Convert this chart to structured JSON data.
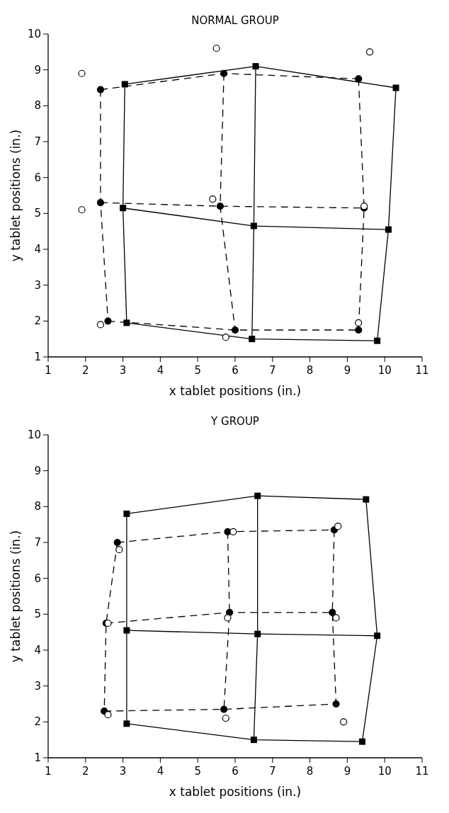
{
  "chart_data": [
    {
      "type": "line",
      "title": "NORMAL GROUP",
      "xlabel": "x tablet positions (in.)",
      "ylabel": "y tablet positions (in.)",
      "xlim": [
        1,
        11
      ],
      "ylim": [
        1,
        10
      ],
      "xticks": [
        1,
        2,
        3,
        4,
        5,
        6,
        7,
        8,
        9,
        10,
        11
      ],
      "yticks": [
        1,
        2,
        3,
        4,
        5,
        6,
        7,
        8,
        9,
        10
      ],
      "series": [
        {
          "color": "#000000",
          "marker": "square",
          "line_style": "solid",
          "x": [
            3.05,
            6.55,
            10.3
          ],
          "values": [
            8.6,
            9.1,
            8.5
          ]
        },
        {
          "color": "#000000",
          "marker": "square",
          "line_style": "solid",
          "x": [
            3.0,
            6.5,
            10.1
          ],
          "values": [
            5.15,
            4.65,
            4.55
          ]
        },
        {
          "color": "#000000",
          "marker": "square",
          "line_style": "solid",
          "x": [
            3.1,
            6.45,
            9.8
          ],
          "values": [
            1.95,
            1.5,
            1.45
          ]
        },
        {
          "color": "#000000",
          "marker": "none",
          "line_style": "solid",
          "x": [
            3.05,
            3.0,
            3.1
          ],
          "values": [
            8.6,
            5.15,
            1.95
          ]
        },
        {
          "color": "#000000",
          "marker": "none",
          "line_style": "solid",
          "x": [
            6.55,
            6.5,
            6.45
          ],
          "values": [
            9.1,
            4.65,
            1.5
          ]
        },
        {
          "color": "#000000",
          "marker": "none",
          "line_style": "solid",
          "x": [
            10.3,
            10.1,
            9.8
          ],
          "values": [
            8.5,
            4.55,
            1.45
          ]
        },
        {
          "color": "#000000",
          "marker": "circle",
          "line_style": "dashed",
          "x": [
            2.4,
            5.7,
            9.3
          ],
          "values": [
            8.45,
            8.9,
            8.75
          ]
        },
        {
          "color": "#000000",
          "marker": "circle",
          "line_style": "dashed",
          "x": [
            2.4,
            5.6,
            9.45
          ],
          "values": [
            5.3,
            5.2,
            5.15
          ]
        },
        {
          "color": "#000000",
          "marker": "circle",
          "line_style": "dashed",
          "x": [
            2.6,
            6.0,
            9.3
          ],
          "values": [
            2.0,
            1.75,
            1.75
          ]
        },
        {
          "color": "#000000",
          "marker": "none",
          "line_style": "dashed",
          "x": [
            2.4,
            2.4,
            2.6
          ],
          "values": [
            8.45,
            5.3,
            2.0
          ]
        },
        {
          "color": "#000000",
          "marker": "none",
          "line_style": "dashed",
          "x": [
            5.7,
            5.6,
            6.0
          ],
          "values": [
            8.9,
            5.2,
            1.75
          ]
        },
        {
          "color": "#000000",
          "marker": "none",
          "line_style": "dashed",
          "x": [
            9.3,
            9.45,
            9.3
          ],
          "values": [
            8.75,
            5.15,
            1.75
          ]
        },
        {
          "type": "scatter",
          "color": "#000000",
          "marker": "circle",
          "x": [
            1.9,
            5.5,
            9.6,
            1.9,
            5.4,
            9.45,
            2.4,
            5.75,
            9.3
          ],
          "values": [
            8.9,
            9.6,
            9.5,
            5.1,
            5.4,
            5.2,
            1.9,
            1.55,
            1.95
          ]
        }
      ]
    },
    {
      "type": "line",
      "title": "Y GROUP",
      "xlabel": "x tablet positions (in.)",
      "ylabel": "y tablet positions (in.)",
      "xlim": [
        1,
        11
      ],
      "ylim": [
        1,
        10
      ],
      "xticks": [
        1,
        2,
        3,
        4,
        5,
        6,
        7,
        8,
        9,
        10,
        11
      ],
      "yticks": [
        1,
        2,
        3,
        4,
        5,
        6,
        7,
        8,
        9,
        10
      ],
      "series": [
        {
          "color": "#000000",
          "marker": "square",
          "line_style": "solid",
          "x": [
            3.1,
            6.6,
            9.5
          ],
          "values": [
            7.8,
            8.3,
            8.2
          ]
        },
        {
          "color": "#000000",
          "marker": "square",
          "line_style": "solid",
          "x": [
            3.1,
            6.6,
            9.8
          ],
          "values": [
            4.55,
            4.45,
            4.4
          ]
        },
        {
          "color": "#000000",
          "marker": "square",
          "line_style": "solid",
          "x": [
            3.1,
            6.5,
            9.4
          ],
          "values": [
            1.95,
            1.5,
            1.45
          ]
        },
        {
          "color": "#000000",
          "marker": "none",
          "line_style": "solid",
          "x": [
            3.1,
            3.1,
            3.1
          ],
          "values": [
            7.8,
            4.55,
            1.95
          ]
        },
        {
          "color": "#000000",
          "marker": "none",
          "line_style": "solid",
          "x": [
            6.6,
            6.6,
            6.5
          ],
          "values": [
            8.3,
            4.45,
            1.5
          ]
        },
        {
          "color": "#000000",
          "marker": "none",
          "line_style": "solid",
          "x": [
            9.5,
            9.8,
            9.4
          ],
          "values": [
            8.2,
            4.4,
            1.45
          ]
        },
        {
          "color": "#000000",
          "marker": "circle",
          "line_style": "dashed",
          "x": [
            2.85,
            5.8,
            8.65
          ],
          "values": [
            7.0,
            7.3,
            7.35
          ]
        },
        {
          "color": "#000000",
          "marker": "circle",
          "line_style": "dashed",
          "x": [
            2.55,
            5.85,
            8.6
          ],
          "values": [
            4.75,
            5.05,
            5.05
          ]
        },
        {
          "color": "#000000",
          "marker": "circle",
          "line_style": "dashed",
          "x": [
            2.5,
            5.7,
            8.7
          ],
          "values": [
            2.3,
            2.35,
            2.5
          ]
        },
        {
          "color": "#000000",
          "marker": "none",
          "line_style": "dashed",
          "x": [
            2.85,
            2.55,
            2.5
          ],
          "values": [
            7.0,
            4.75,
            2.3
          ]
        },
        {
          "color": "#000000",
          "marker": "none",
          "line_style": "dashed",
          "x": [
            5.8,
            5.85,
            5.7
          ],
          "values": [
            7.3,
            5.05,
            2.35
          ]
        },
        {
          "color": "#000000",
          "marker": "none",
          "line_style": "dashed",
          "x": [
            8.65,
            8.6,
            8.7
          ],
          "values": [
            7.35,
            5.05,
            2.5
          ]
        },
        {
          "type": "scatter",
          "color": "#000000",
          "marker": "circle",
          "x": [
            2.9,
            5.95,
            8.75,
            2.6,
            5.8,
            8.7,
            2.6,
            5.75,
            8.9
          ],
          "values": [
            6.8,
            7.3,
            7.45,
            4.75,
            4.9,
            4.9,
            2.2,
            2.1,
            2.0
          ]
        }
      ]
    }
  ]
}
